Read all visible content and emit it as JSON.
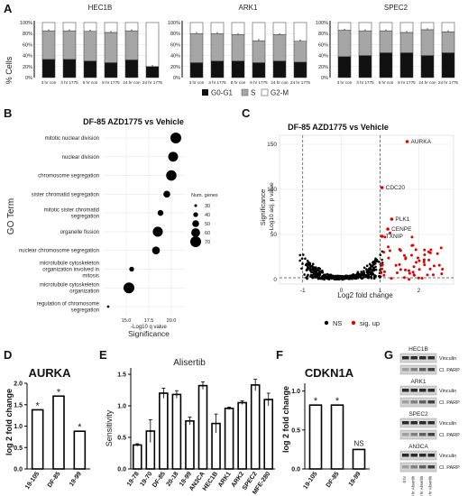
{
  "panelA": {
    "letter": "A",
    "ylabel": "% Cells",
    "yticks": [
      "0%",
      "20%",
      "40%",
      "60%",
      "80%",
      "100%"
    ],
    "legend": [
      "G0-G1",
      "S",
      "G2-M"
    ],
    "colors": {
      "G0G1": "#111111",
      "S": "#a6a6a6",
      "G2M": "#ffffff"
    }
  },
  "panelB": {
    "letter": "B",
    "title": "DF-85 AZD1775 vs Vehicle",
    "ylabel": "GO Term",
    "xlabel": "Significance",
    "xlabel_sub": "-Log10 q value",
    "xticks": [
      "15.0",
      "17.5",
      "20.0"
    ],
    "size_title": "Num. genes",
    "size_levels": [
      "30",
      "40",
      "50",
      "60",
      "70"
    ]
  },
  "panelC": {
    "letter": "C",
    "title": "DF-85 AZD1775 vs Vehicle",
    "ylabel": "Significance",
    "ylabel_sub": "-Log10 adj. p value",
    "xlabel": "Log2 fold change",
    "yticks": [
      "0",
      "50",
      "100",
      "150"
    ],
    "xticks": [
      "-1",
      "0",
      "1",
      "2"
    ],
    "legend": [
      "NS",
      "sig. up"
    ],
    "genes": [
      "AURKA",
      "CDC20",
      "PLK1",
      "CENPE",
      "TXNIP"
    ]
  },
  "panelD": {
    "letter": "D",
    "title": "AURKA",
    "ylabel": "log 2 fold change",
    "yticks": [
      "0.0",
      "0.5",
      "1.0",
      "1.5",
      "2.0"
    ]
  },
  "panelE": {
    "letter": "E",
    "title": "Alisertib",
    "ylabel": "Sensitivity",
    "yticks": [
      "0.0",
      "0.5",
      "1.0",
      "1.5"
    ]
  },
  "panelF": {
    "letter": "F",
    "title": "CDKN1A",
    "ylabel": "log 2 fold change",
    "yticks": [
      "0.0",
      "0.5",
      "1.0"
    ],
    "ns_label": "NS"
  },
  "panelG": {
    "letter": "G",
    "lines": [
      "HEC1B",
      "ARK1",
      "SPEC2",
      "AN3CA"
    ],
    "bands": [
      "Vinculin",
      "Cl. PARP"
    ],
    "lanes": [
      "0 hr",
      "3 hr Alisertib",
      "8 hr Alisertib",
      "24 hr Alisertib"
    ]
  },
  "chart_data": [
    {
      "type": "bar",
      "title": "HEC1B",
      "categories": [
        "3 hr con",
        "3 hr 1775",
        "8 hr con",
        "8 hr 1775",
        "24 hr con",
        "24 hr 1775"
      ],
      "series": [
        {
          "name": "G0-G1",
          "values": [
            33,
            33,
            30,
            27,
            32,
            20
          ]
        },
        {
          "name": "S",
          "values": [
            52,
            52,
            54,
            55,
            53,
            0
          ]
        },
        {
          "name": "G2-M",
          "values": [
            15,
            15,
            16,
            18,
            15,
            80
          ]
        }
      ],
      "ylim": [
        0,
        100
      ]
    },
    {
      "type": "bar",
      "title": "ARK1",
      "categories": [
        "3 hr con",
        "3 hr 1775",
        "8 hr con",
        "8 hr 1775",
        "24 hr con",
        "24 hr 1775"
      ],
      "series": [
        {
          "name": "G0-G1",
          "values": [
            27,
            30,
            30,
            27,
            30,
            28
          ]
        },
        {
          "name": "S",
          "values": [
            53,
            50,
            48,
            40,
            48,
            38
          ]
        },
        {
          "name": "G2-M",
          "values": [
            20,
            20,
            22,
            33,
            22,
            34
          ]
        }
      ],
      "ylim": [
        0,
        100
      ]
    },
    {
      "type": "bar",
      "title": "SPEC2",
      "categories": [
        "3 hr con",
        "3 hr 1775",
        "8 hr con",
        "8 hr 1775",
        "24 hr con",
        "24 hr 1775"
      ],
      "series": [
        {
          "name": "G0-G1",
          "values": [
            38,
            40,
            45,
            45,
            40,
            45
          ]
        },
        {
          "name": "S",
          "values": [
            48,
            45,
            40,
            37,
            47,
            38
          ]
        },
        {
          "name": "G2-M",
          "values": [
            14,
            15,
            15,
            18,
            13,
            17
          ]
        }
      ],
      "ylim": [
        0,
        100
      ]
    },
    {
      "type": "scatter",
      "title": "DF-85 AZD1775 vs Vehicle",
      "terms": [
        {
          "label": "mitotic nuclear division",
          "x": 20.5,
          "n": 70
        },
        {
          "label": "nuclear division",
          "x": 20.2,
          "n": 65
        },
        {
          "label": "chromosome segregation",
          "x": 20.0,
          "n": 68
        },
        {
          "label": "sister chromatid segregation",
          "x": 19.5,
          "n": 50
        },
        {
          "label": "mitotic sister chromatid segregation",
          "x": 18.8,
          "n": 45
        },
        {
          "label": "organelle fission",
          "x": 18.5,
          "n": 66
        },
        {
          "label": "nuclear chromosome segregation",
          "x": 18.3,
          "n": 55
        },
        {
          "label": "microtubule cytoskeleton organization involved in mitosis",
          "x": 15.6,
          "n": 40
        },
        {
          "label": "microtubule cytoskeleton organization",
          "x": 15.3,
          "n": 70
        },
        {
          "label": "regulation of chromosome segregation",
          "x": 13.0,
          "n": 28
        }
      ],
      "xlabel": "Significance",
      "xlim": [
        12.5,
        21.5
      ]
    },
    {
      "type": "scatter",
      "title": "DF-85 AZD1775 vs Vehicle",
      "xlabel": "Log2 fold change",
      "ylabel": "Significance",
      "xlim": [
        -1.6,
        2.9
      ],
      "ylim": [
        -5,
        160
      ],
      "labeled_points": [
        {
          "label": "AURKA",
          "x": 1.7,
          "y": 153
        },
        {
          "label": "CDC20",
          "x": 1.05,
          "y": 102
        },
        {
          "label": "PLK1",
          "x": 1.3,
          "y": 67
        },
        {
          "label": "CENPE",
          "x": 1.2,
          "y": 56
        },
        {
          "label": "TXNIP",
          "x": 1.05,
          "y": 48
        }
      ],
      "thresholds": {
        "x": [
          -1,
          1
        ],
        "y": 2
      }
    },
    {
      "type": "bar",
      "title": "AURKA",
      "categories": [
        "19-105",
        "DF-85",
        "19-99"
      ],
      "values": [
        1.38,
        1.7,
        0.88
      ],
      "significant": [
        true,
        true,
        true
      ],
      "ylabel": "log 2 fold change",
      "ylim": [
        0,
        2
      ]
    },
    {
      "type": "bar",
      "title": "Alisertib",
      "categories": [
        "19-78",
        "19-70",
        "DF-85",
        "20-18",
        "19-99",
        "AN3CA",
        "HEC1B",
        "ARK1",
        "ARK2",
        "SPEC2",
        "MFE-280"
      ],
      "values": [
        0.38,
        0.6,
        1.2,
        1.18,
        0.76,
        1.32,
        0.72,
        0.96,
        1.05,
        1.33,
        1.1
      ],
      "errors": [
        0.02,
        0.18,
        0.08,
        0.06,
        0.06,
        0.06,
        0.15,
        0.02,
        0.03,
        0.09,
        0.1
      ],
      "ylabel": "Sensitivity",
      "ylim": [
        0,
        1.6
      ]
    },
    {
      "type": "bar",
      "title": "CDKN1A",
      "categories": [
        "19-105",
        "DF-85",
        "19-99"
      ],
      "values": [
        0.82,
        0.82,
        0.25
      ],
      "significance": [
        "*",
        "*",
        "NS"
      ],
      "ylabel": "log 2 fold change",
      "ylim": [
        0,
        1.1
      ]
    }
  ]
}
